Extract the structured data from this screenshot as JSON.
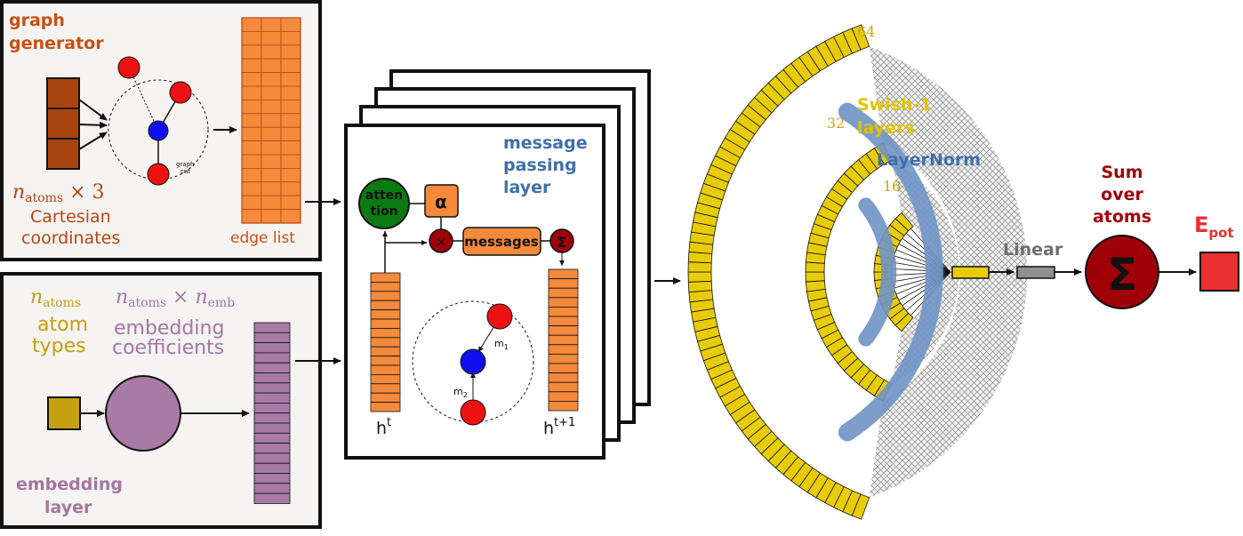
{
  "graph_generator": {
    "title_line1": "graph",
    "title_line2": "generator",
    "natoms_expr": "n",
    "natoms_sub": "atoms",
    "natoms_times": " × 3",
    "coord_line1": "Cartesian",
    "coord_line2": "coordinates",
    "cutoff_line1": "graph",
    "cutoff_line2": "cut",
    "edge_list_label": "edge list"
  },
  "embedding_layer": {
    "natoms_sym": "n",
    "natoms_sub": "atoms",
    "atom_types_line1": "atom",
    "atom_types_line2": "types",
    "emb_sym_n": "n",
    "emb_sub_atoms": "atoms",
    "emb_times": " × n",
    "emb_sub_emb": "emb",
    "emb_coeff_line1": "embedding",
    "emb_coeff_line2": "coefficients",
    "title_line1": "embedding",
    "title_line2": "layer"
  },
  "message_passing": {
    "title_line1": "message",
    "title_line2": "passing",
    "title_line3": "layer",
    "attention_line1": "atten",
    "attention_line2": "tion",
    "alpha": "α",
    "multiply": "×",
    "messages": "messages",
    "sum": "Σ",
    "h_in": "h",
    "h_in_sup": "t",
    "h_out": "h",
    "h_out_sup": "t+1",
    "m1": "m",
    "m1_sub": "1",
    "m2": "m",
    "m2_sub": "2"
  },
  "mlp": {
    "layer_sizes": [
      "64",
      "32",
      "16"
    ],
    "swish_line1": "Swish-1",
    "swish_line2": "layers",
    "layernorm": "LayerNorm",
    "linear": "Linear",
    "sum_line1": "Sum",
    "sum_line2": "over",
    "sum_line3": "atoms",
    "sum_symbol": "Σ",
    "epot": "E",
    "epot_sub": "pot"
  },
  "colors": {
    "orange_dark": "#b5470f",
    "orange_text": "#c8500f",
    "orange_cell": "#f58a3c",
    "purple": "#a87aa5",
    "purple_text": "#a277a0",
    "gold": "#c49f10",
    "gold_text": "#c9a814",
    "yellow": "#e8cc08",
    "blue_text": "#3f6fa8",
    "blue_band": "#6f93c4",
    "red_node": "#ee1111",
    "blue_node": "#1010ee",
    "green": "#0b7a12",
    "darkred": "#a00008",
    "grey": "#909090",
    "epot_red": "#e83030",
    "panel_bg": "#f6f3f3"
  }
}
